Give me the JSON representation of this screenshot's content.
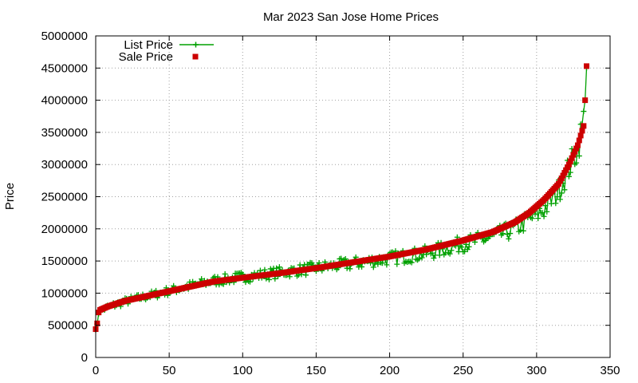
{
  "chart_data": {
    "type": "line",
    "title": "Mar 2023 San Jose Home Prices",
    "xlabel": "",
    "ylabel": "Price",
    "xlim": [
      0,
      350
    ],
    "ylim": [
      0,
      5000000
    ],
    "xticks": [
      0,
      50,
      100,
      150,
      200,
      250,
      300,
      350
    ],
    "yticks": [
      0,
      500000,
      1000000,
      1500000,
      2000000,
      2500000,
      3000000,
      3500000,
      4000000,
      4500000,
      5000000
    ],
    "grid": true,
    "legend_position": "top-left",
    "n_points": 335,
    "sale_anchors": [
      [
        0,
        440000
      ],
      [
        1,
        530000
      ],
      [
        2,
        700000
      ],
      [
        3,
        740000
      ],
      [
        8,
        790000
      ],
      [
        20,
        880000
      ],
      [
        40,
        980000
      ],
      [
        60,
        1080000
      ],
      [
        80,
        1180000
      ],
      [
        100,
        1240000
      ],
      [
        125,
        1310000
      ],
      [
        150,
        1390000
      ],
      [
        175,
        1480000
      ],
      [
        200,
        1570000
      ],
      [
        225,
        1680000
      ],
      [
        250,
        1820000
      ],
      [
        270,
        1950000
      ],
      [
        285,
        2100000
      ],
      [
        295,
        2250000
      ],
      [
        305,
        2450000
      ],
      [
        315,
        2700000
      ],
      [
        322,
        3000000
      ],
      [
        328,
        3300000
      ],
      [
        332,
        3600000
      ],
      [
        333,
        4000000
      ],
      [
        334,
        4530000
      ]
    ],
    "list_anchors": [
      [
        0,
        430000
      ],
      [
        1,
        520000
      ],
      [
        2,
        680000
      ],
      [
        3,
        720000
      ],
      [
        8,
        780000
      ],
      [
        20,
        870000
      ],
      [
        40,
        980000
      ],
      [
        60,
        1090000
      ],
      [
        80,
        1190000
      ],
      [
        100,
        1250000
      ],
      [
        125,
        1320000
      ],
      [
        150,
        1390000
      ],
      [
        175,
        1460000
      ],
      [
        200,
        1540000
      ],
      [
        225,
        1620000
      ],
      [
        250,
        1770000
      ],
      [
        270,
        1870000
      ],
      [
        285,
        2000000
      ],
      [
        295,
        2150000
      ],
      [
        305,
        2300000
      ],
      [
        315,
        2600000
      ],
      [
        322,
        2950000
      ],
      [
        328,
        3250000
      ],
      [
        332,
        3700000
      ],
      [
        333,
        4000000
      ],
      [
        334,
        4500000
      ]
    ],
    "series": [
      {
        "name": "List Price",
        "color": "#00a000",
        "marker": "plus",
        "style": "linespoints"
      },
      {
        "name": "Sale Price",
        "color": "#cc0000",
        "marker": "square",
        "style": "points"
      }
    ]
  }
}
